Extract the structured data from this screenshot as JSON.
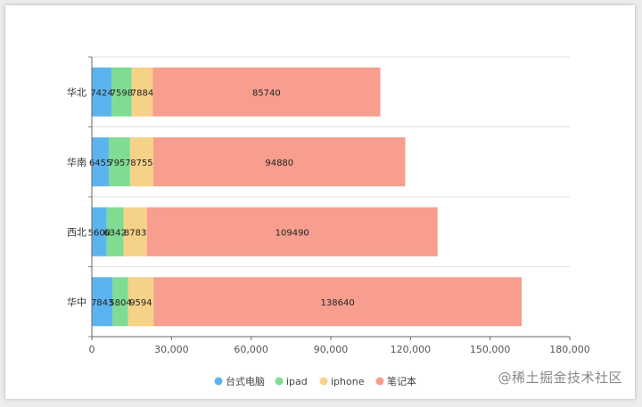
{
  "watermark": "@稀土掘金技术社区",
  "chart_data": {
    "type": "bar",
    "orientation": "horizontal",
    "stacked": true,
    "categories": [
      "华北",
      "华南",
      "西北",
      "华中"
    ],
    "series": [
      {
        "name": "台式电脑",
        "color": "#5cb4ef",
        "values": [
          7424,
          6455,
          5600,
          7843
        ]
      },
      {
        "name": "ipad",
        "color": "#7fdc92",
        "values": [
          7598,
          7957,
          6342,
          5804
        ]
      },
      {
        "name": "iphone",
        "color": "#f6d188",
        "values": [
          7884,
          8755,
          8783,
          9594
        ]
      },
      {
        "name": "笔记本",
        "color": "#f79e8e",
        "values": [
          85740,
          94880,
          109490,
          138640
        ]
      }
    ],
    "xlim": [
      0,
      180000
    ],
    "xticks": [
      0,
      30000,
      60000,
      90000,
      120000,
      150000,
      180000
    ],
    "xtick_labels": [
      "0",
      "30,000",
      "60,000",
      "90,000",
      "120,000",
      "150,000",
      "180,000"
    ],
    "grid": true,
    "legend_position": "bottom-center",
    "title": "",
    "xlabel": "",
    "ylabel": ""
  }
}
